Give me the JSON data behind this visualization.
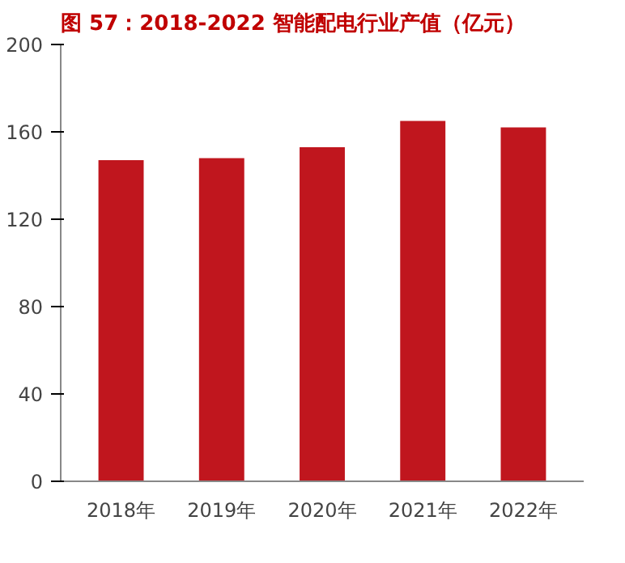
{
  "chart_data": {
    "type": "bar",
    "title": "图 57：2018-2022 智能配电行业产值（亿元）",
    "categories": [
      "2018年",
      "2019年",
      "2020年",
      "2021年",
      "2022年"
    ],
    "values": [
      147,
      148,
      153,
      165,
      162
    ],
    "color": "#c0161e",
    "ylim": [
      0,
      200
    ],
    "yticks": [
      0,
      40,
      80,
      120,
      160,
      200
    ],
    "grid": false
  }
}
